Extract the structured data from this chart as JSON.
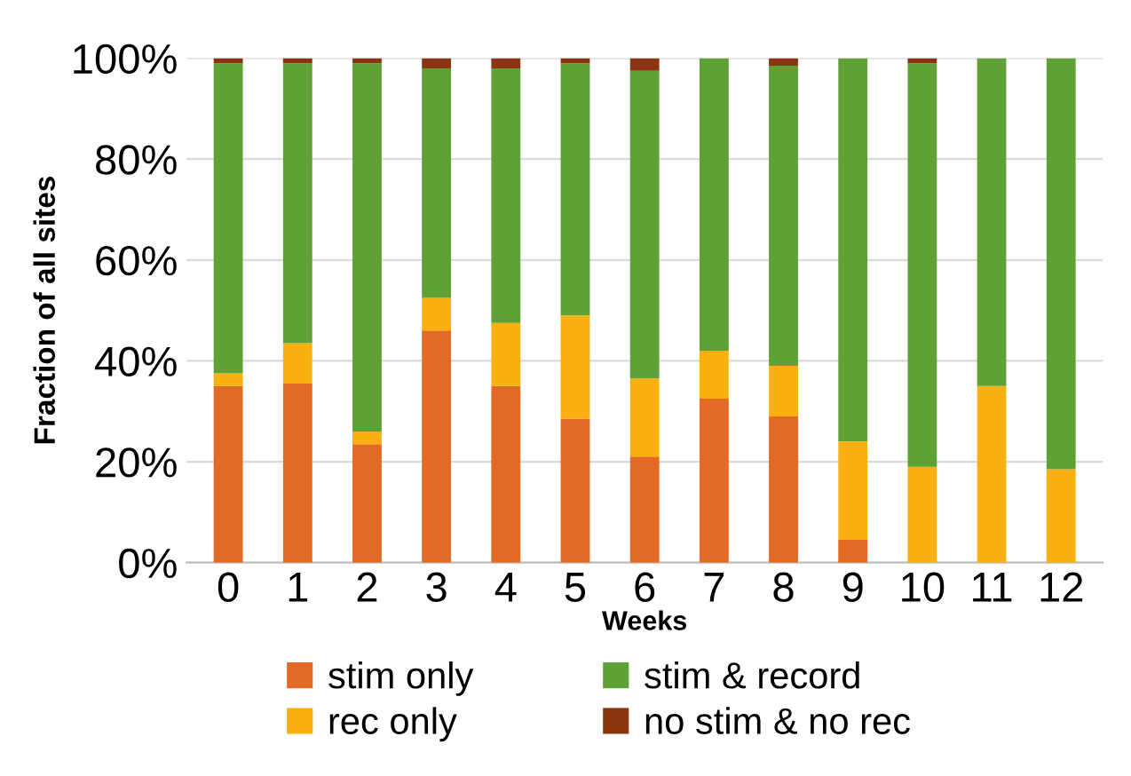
{
  "chart_data": {
    "type": "bar",
    "stacked": true,
    "xlabel": "Weeks",
    "ylabel": "Fraction of all sites",
    "categories": [
      "0",
      "1",
      "2",
      "3",
      "4",
      "5",
      "6",
      "7",
      "8",
      "9",
      "10",
      "11",
      "12"
    ],
    "series": [
      {
        "name": "stim only",
        "color": "#e36a24",
        "values": [
          35,
          35.5,
          23.5,
          46,
          35,
          28.5,
          21,
          32.5,
          29,
          4.5,
          0,
          0,
          0
        ]
      },
      {
        "name": "rec only",
        "color": "#fab010",
        "values": [
          2.5,
          8,
          2.5,
          6.5,
          12.5,
          20.5,
          15.5,
          9.5,
          10,
          19.5,
          19,
          35,
          18.5
        ]
      },
      {
        "name": "stim & record",
        "color": "#5fa037",
        "values": [
          61.5,
          55.5,
          73,
          45.5,
          50.5,
          50,
          61,
          58,
          59.5,
          76,
          80,
          65,
          81.5
        ]
      },
      {
        "name": "no stim & no rec",
        "color": "#8b3510",
        "values": [
          1,
          1,
          1,
          2,
          2,
          1,
          2.5,
          0,
          1.5,
          0,
          1,
          0,
          0
        ]
      }
    ],
    "ylim": [
      0,
      100
    ],
    "yticks": [
      {
        "value": 0,
        "label": "0%"
      },
      {
        "value": 20,
        "label": "20%"
      },
      {
        "value": 40,
        "label": "40%"
      },
      {
        "value": 60,
        "label": "60%"
      },
      {
        "value": 80,
        "label": "80%"
      },
      {
        "value": 100,
        "label": "100%"
      }
    ],
    "grid": "y",
    "legend": "bottom"
  }
}
